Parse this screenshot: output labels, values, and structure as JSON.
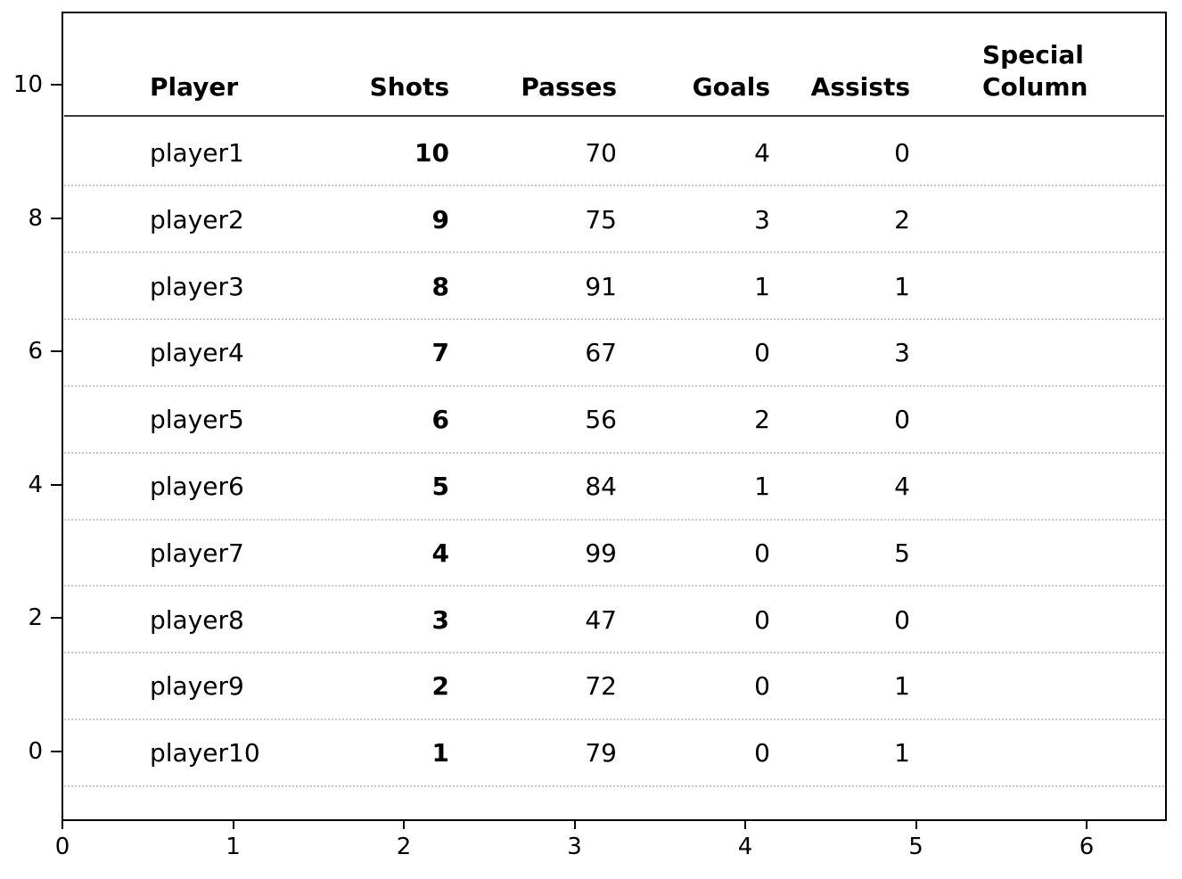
{
  "figure": {
    "background_color": "#ffffff",
    "text_color": "#000000",
    "spine_color": "#000000",
    "grid_color": "#c8c8c8",
    "header_rule_color": "#3a3a3a"
  },
  "chart_data": {
    "type": "table",
    "title": "",
    "columns": [
      "Player",
      "Shots",
      "Passes",
      "Goals",
      "Assists",
      "Special\nColumn"
    ],
    "rows": [
      [
        "player1",
        "10",
        "70",
        "4",
        "0",
        ""
      ],
      [
        "player2",
        "9",
        "75",
        "3",
        "2",
        ""
      ],
      [
        "player3",
        "8",
        "91",
        "1",
        "1",
        ""
      ],
      [
        "player4",
        "7",
        "67",
        "0",
        "3",
        ""
      ],
      [
        "player5",
        "6",
        "56",
        "2",
        "0",
        ""
      ],
      [
        "player6",
        "5",
        "84",
        "1",
        "4",
        ""
      ],
      [
        "player7",
        "4",
        "99",
        "0",
        "5",
        ""
      ],
      [
        "player8",
        "3",
        "47",
        "0",
        "0",
        ""
      ],
      [
        "player9",
        "2",
        "72",
        "0",
        "1",
        ""
      ],
      [
        "player10",
        "1",
        "79",
        "0",
        "1",
        ""
      ]
    ],
    "bold_columns": [
      "Shots"
    ],
    "empty_columns": [
      "Special\nColumn"
    ],
    "y_ticks": [
      "10",
      "8",
      "6",
      "4",
      "2",
      "0"
    ],
    "x_ticks": [
      "0",
      "1",
      "2",
      "3",
      "4",
      "5",
      "6"
    ],
    "xlim": [
      0,
      6.5
    ],
    "ylim": [
      -1.1,
      11.1
    ],
    "grid": "dotted horizontal row separators",
    "legend": "none"
  }
}
